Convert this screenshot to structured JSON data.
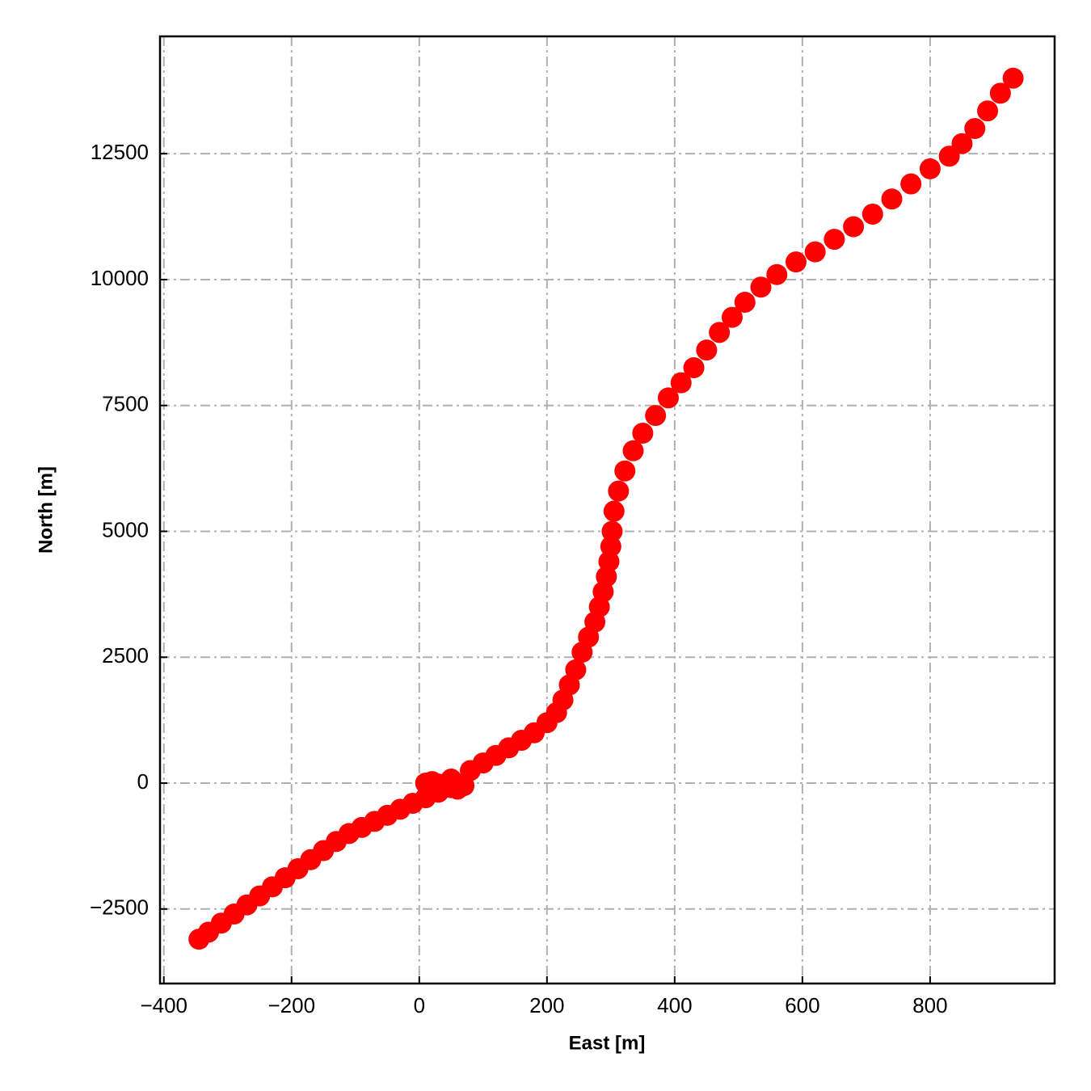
{
  "chart_data": {
    "type": "scatter",
    "x_label": "East [m]",
    "y_label": "North [m]",
    "color": "#ff0000",
    "grid": true,
    "xlim": [
      -406,
      995
    ],
    "xticks": [
      {
        "value": -400,
        "label": "−400"
      },
      {
        "value": -200,
        "label": "−200"
      },
      0,
      200,
      400,
      600,
      800
    ],
    "ylim": [
      -3980,
      14830
    ],
    "yticks": [
      {
        "value": -2500,
        "label": "−2500"
      },
      0,
      2500,
      5000,
      7500,
      10000,
      12500
    ],
    "x": [
      -345,
      -330,
      -310,
      -290,
      -270,
      -250,
      -230,
      -210,
      -190,
      -170,
      -150,
      -130,
      -110,
      -90,
      -70,
      -50,
      -30,
      -10,
      10,
      30,
      50,
      70,
      60,
      30,
      10,
      20,
      50,
      80,
      100,
      120,
      140,
      160,
      180,
      200,
      215,
      225,
      235,
      245,
      255,
      265,
      275,
      282,
      288,
      293,
      297,
      300,
      302,
      305,
      312,
      322,
      335,
      350,
      370,
      390,
      410,
      430,
      450,
      470,
      490,
      510,
      535,
      560,
      590,
      620,
      650,
      680,
      710,
      740,
      770,
      800,
      830,
      850,
      870,
      890,
      910,
      930
    ],
    "values": [
      -3100,
      -2960,
      -2780,
      -2600,
      -2420,
      -2240,
      -2060,
      -1880,
      -1700,
      -1520,
      -1340,
      -1160,
      -1000,
      -880,
      -760,
      -640,
      -520,
      -400,
      -290,
      -180,
      -90,
      -50,
      -120,
      -20,
      0,
      30,
      80,
      250,
      400,
      550,
      700,
      850,
      1000,
      1200,
      1400,
      1650,
      1950,
      2250,
      2600,
      2900,
      3200,
      3500,
      3800,
      4100,
      4400,
      4700,
      5000,
      5400,
      5800,
      6200,
      6600,
      6950,
      7300,
      7650,
      7950,
      8250,
      8600,
      8950,
      9250,
      9550,
      9850,
      10100,
      10350,
      10550,
      10800,
      11050,
      11300,
      11600,
      11900,
      12200,
      12450,
      12700,
      13000,
      13350,
      13700,
      14000
    ]
  }
}
